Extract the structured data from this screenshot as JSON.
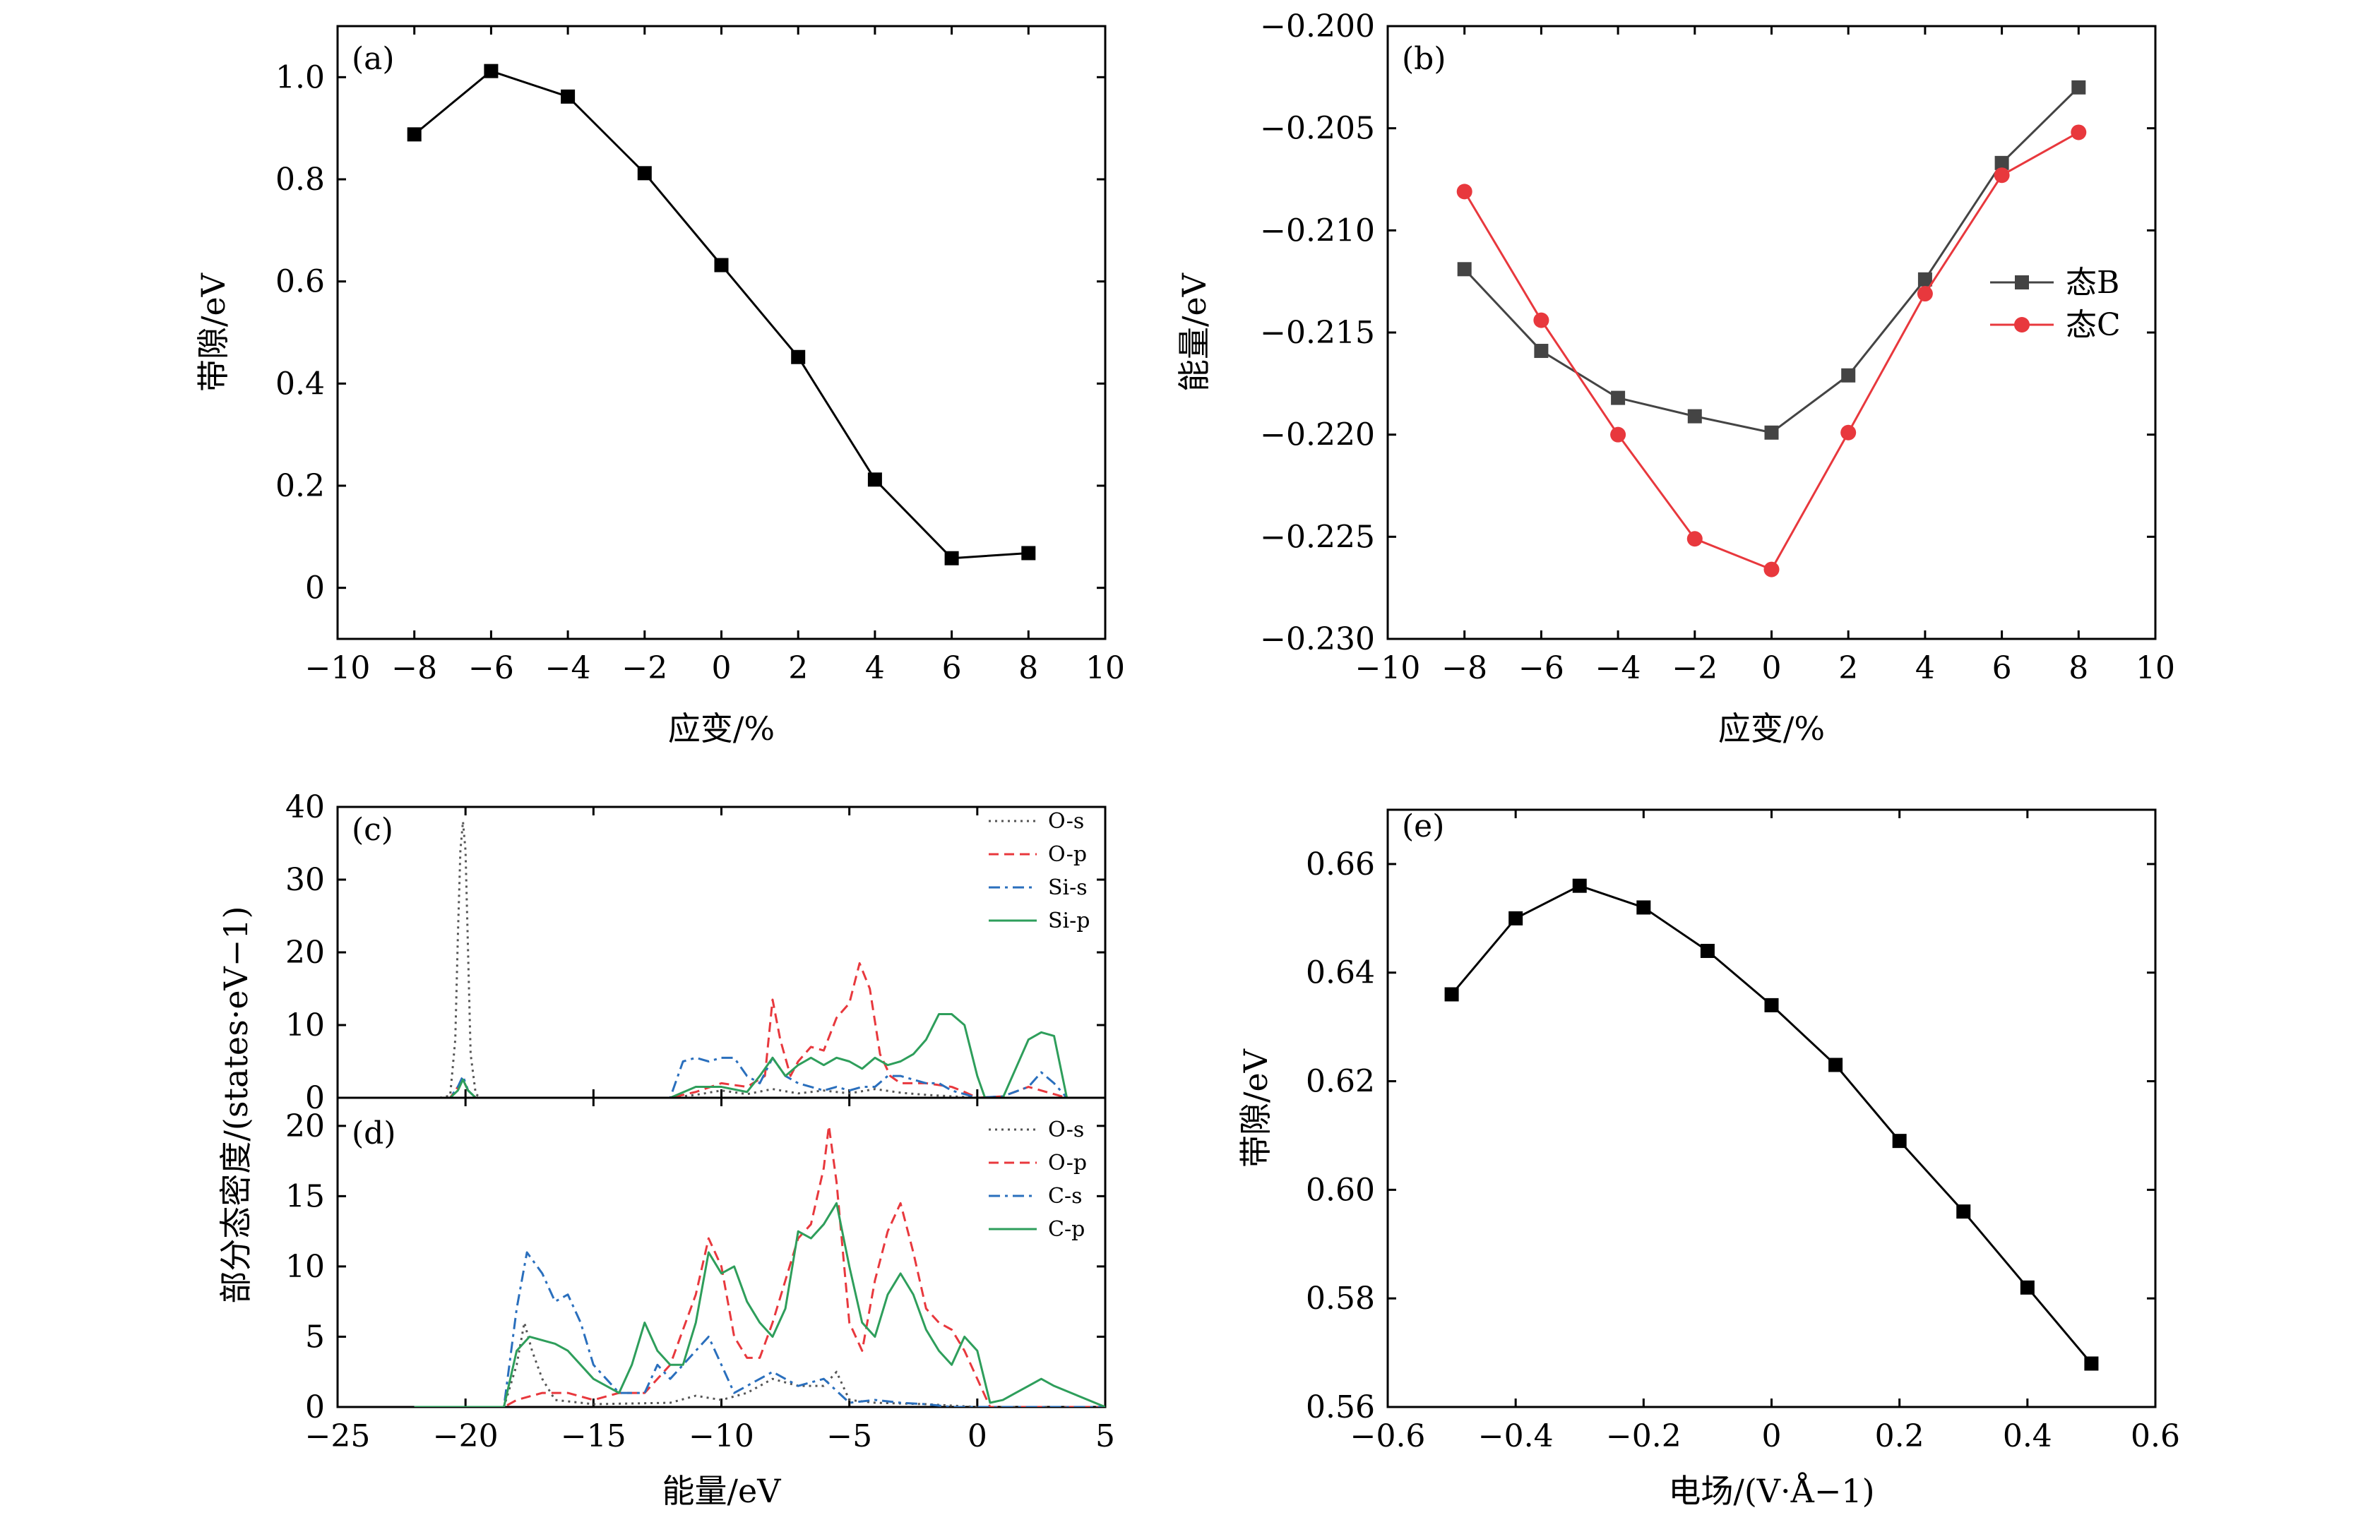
{
  "chart_data": [
    {
      "panel": "(a)",
      "type": "line",
      "xlabel": "应变/%",
      "ylabel": "带隙/eV",
      "xlim": [
        -10,
        10
      ],
      "ylim": [
        -0.1,
        1.1
      ],
      "xticks": [
        -10,
        -8,
        -6,
        -4,
        -2,
        0,
        2,
        4,
        6,
        8,
        10
      ],
      "xtick_labels": [
        "−10",
        "−8",
        "−6",
        "−4",
        "−2",
        "0",
        "2",
        "4",
        "6",
        "8",
        "10"
      ],
      "yticks": [
        0,
        0.2,
        0.4,
        0.6,
        0.8,
        1.0
      ],
      "ytick_labels": [
        "0",
        "0.2",
        "0.4",
        "0.6",
        "0.8",
        "1.0"
      ],
      "series": [
        {
          "color": "#000000",
          "marker": "square",
          "x": [
            -8,
            -6,
            -4,
            -2,
            0,
            2,
            4,
            6,
            8
          ],
          "y": [
            0.888,
            1.012,
            0.962,
            0.812,
            0.632,
            0.452,
            0.212,
            0.058,
            0.068
          ]
        }
      ]
    },
    {
      "panel": "(b)",
      "type": "line",
      "xlabel": "应变/%",
      "ylabel": "能量/eV",
      "xlim": [
        -10,
        10
      ],
      "ylim": [
        -0.23,
        -0.2
      ],
      "xticks": [
        -10,
        -8,
        -6,
        -4,
        -2,
        0,
        2,
        4,
        6,
        8,
        10
      ],
      "xtick_labels": [
        "−10",
        "−8",
        "−6",
        "−4",
        "−2",
        "0",
        "2",
        "4",
        "6",
        "8",
        "10"
      ],
      "yticks": [
        -0.23,
        -0.225,
        -0.22,
        -0.215,
        -0.21,
        -0.205,
        -0.2
      ],
      "ytick_labels": [
        "−0.230",
        "−0.225",
        "−0.220",
        "−0.215",
        "−0.210",
        "−0.205",
        "−0.200"
      ],
      "legend_position": "right",
      "series": [
        {
          "name": "态B",
          "color": "#444444",
          "marker": "square",
          "x": [
            -8,
            -6,
            -4,
            -2,
            0,
            2,
            4,
            6,
            8
          ],
          "y": [
            -0.2119,
            -0.2159,
            -0.2182,
            -0.2191,
            -0.2199,
            -0.2171,
            -0.2124,
            -0.2067,
            -0.203
          ]
        },
        {
          "name": "态C",
          "color": "#e8383d",
          "marker": "circle",
          "x": [
            -8,
            -6,
            -4,
            -2,
            0,
            2,
            4,
            6,
            8
          ],
          "y": [
            -0.2081,
            -0.2144,
            -0.22,
            -0.2251,
            -0.2266,
            -0.2199,
            -0.2131,
            -0.2073,
            -0.2052
          ]
        }
      ]
    },
    {
      "panel": "(c)",
      "type": "line",
      "xlim": [
        -25,
        5
      ],
      "ylim": [
        0,
        40
      ],
      "yticks": [
        0,
        10,
        20,
        30,
        40
      ],
      "ytick_labels": [
        "0",
        "10",
        "20",
        "30",
        "40"
      ],
      "legend_position": "top-right",
      "series": [
        {
          "name": "O-s",
          "color": "#555555",
          "style": "dotted",
          "x": [
            -22,
            -21,
            -20.6,
            -20.4,
            -20.3,
            -20.2,
            -20.1,
            -20.0,
            -19.9,
            -19.8,
            -19.6,
            -19.4,
            -12,
            -11,
            -10,
            -9,
            -8,
            -7,
            -6,
            -5,
            -4,
            -3,
            -2,
            -1,
            0,
            3.5
          ],
          "y": [
            0,
            0,
            0.3,
            8,
            22,
            34,
            38,
            34,
            20,
            6,
            0.5,
            0,
            0,
            0.4,
            1,
            0.5,
            1.2,
            0.6,
            1.0,
            0.6,
            1.2,
            0.7,
            0.4,
            0.2,
            0,
            0
          ]
        },
        {
          "name": "O-p",
          "color": "#e8383d",
          "style": "dashed",
          "x": [
            -22,
            -20.6,
            -20.3,
            -20.1,
            -19.9,
            -19.6,
            -12,
            -11,
            -10,
            -9,
            -8.3,
            -8.0,
            -7.7,
            -7.3,
            -7,
            -6.5,
            -6,
            -5.5,
            -5,
            -4.6,
            -4.2,
            -3.8,
            -3.4,
            -3,
            -2,
            -1,
            -0.5,
            0,
            1,
            2,
            3.5
          ],
          "y": [
            0,
            0,
            1.5,
            2.5,
            1,
            0,
            0,
            0.8,
            2,
            1.5,
            3,
            13.5,
            8,
            3,
            5,
            7,
            6.5,
            11,
            13,
            18.5,
            15,
            6,
            3,
            2,
            2,
            1.5,
            0.8,
            0,
            0.2,
            1.5,
            0
          ]
        },
        {
          "name": "Si-s",
          "color": "#2a6fbd",
          "style": "dashdot",
          "x": [
            -22,
            -20.6,
            -20.3,
            -20.1,
            -19.9,
            -19.6,
            -12,
            -11.5,
            -11,
            -10.5,
            -10,
            -9.5,
            -9,
            -8.5,
            -8,
            -7.5,
            -7,
            -6.5,
            -6,
            -5.5,
            -5,
            -4.5,
            -4,
            -3.5,
            -3,
            -2.5,
            -2,
            -1.5,
            -1,
            -0.5,
            0,
            1,
            2,
            2.5,
            3,
            3.5
          ],
          "y": [
            0,
            0,
            1.5,
            3,
            1,
            0,
            0,
            5,
            5.5,
            5,
            5.5,
            5.5,
            3,
            2,
            5.5,
            3,
            2,
            1.5,
            1,
            1.5,
            1,
            1.5,
            1.5,
            3,
            3,
            2.5,
            2,
            2,
            1,
            0.5,
            0,
            0.2,
            1.5,
            3.5,
            2,
            0
          ]
        },
        {
          "name": "Si-p",
          "color": "#2e9e5b",
          "style": "solid",
          "x": [
            -22,
            -20.6,
            -20.3,
            -20.1,
            -19.9,
            -19.6,
            -12,
            -11,
            -10,
            -9,
            -8.5,
            -8,
            -7.5,
            -7,
            -6.5,
            -6,
            -5.5,
            -5,
            -4.5,
            -4,
            -3.5,
            -3,
            -2.5,
            -2,
            -1.5,
            -1,
            -0.5,
            0,
            0.3,
            1,
            1.5,
            2,
            2.5,
            3,
            3.5
          ],
          "y": [
            0,
            0,
            1,
            2.5,
            1,
            0,
            0,
            1.5,
            1.5,
            0.8,
            3,
            5.5,
            3,
            4.5,
            5.5,
            4.5,
            5.5,
            5,
            4,
            5.5,
            4.5,
            5,
            6,
            8,
            11.5,
            11.5,
            10,
            3,
            0,
            0,
            4,
            8,
            9,
            8.5,
            0
          ]
        }
      ]
    },
    {
      "panel": "(d)",
      "type": "line",
      "xlabel": "能量/eV",
      "shared_ylabel": "部分态密度/(states·eV−1)",
      "xlim": [
        -25,
        5
      ],
      "ylim": [
        0,
        22
      ],
      "xticks": [
        -25,
        -20,
        -15,
        -10,
        -5,
        0,
        5
      ],
      "xtick_labels": [
        "−25",
        "−20",
        "−15",
        "−10",
        "−5",
        "0",
        "5"
      ],
      "yticks": [
        0,
        5,
        10,
        15,
        20
      ],
      "ytick_labels": [
        "0",
        "5",
        "10",
        "15",
        "20"
      ],
      "legend_position": "top-right",
      "series": [
        {
          "name": "O-s",
          "color": "#555555",
          "style": "dotted",
          "x": [
            -22,
            -18.5,
            -18,
            -17.7,
            -17.4,
            -17,
            -16.5,
            -15,
            -12,
            -11,
            -10,
            -9,
            -8,
            -7,
            -6,
            -5.5,
            -5,
            -4,
            -2,
            0,
            5
          ],
          "y": [
            0,
            0,
            3,
            6,
            4,
            2,
            0.5,
            0.2,
            0.3,
            0.8,
            0.5,
            1,
            2,
            1.5,
            1.5,
            2.5,
            0.5,
            0.3,
            0.2,
            0,
            0
          ]
        },
        {
          "name": "O-p",
          "color": "#e8383d",
          "style": "dashed",
          "x": [
            -22,
            -18.5,
            -18,
            -17,
            -16,
            -15,
            -14,
            -13,
            -12,
            -11,
            -10.5,
            -10,
            -9.5,
            -9,
            -8.5,
            -8,
            -7.5,
            -7,
            -6.5,
            -6,
            -5.8,
            -5.5,
            -5.2,
            -5,
            -4.5,
            -4,
            -3.5,
            -3,
            -2.5,
            -2,
            -1.5,
            -1,
            -0.5,
            0,
            0.5,
            5
          ],
          "y": [
            0,
            0,
            0.5,
            1,
            1,
            0.5,
            1,
            1,
            3,
            8,
            12,
            10,
            5,
            3.5,
            3.5,
            6,
            9,
            12,
            13,
            17,
            20,
            16,
            10,
            6,
            4,
            9,
            12.5,
            14.5,
            11,
            7,
            6,
            5.5,
            4,
            2,
            0,
            0
          ]
        },
        {
          "name": "C-s",
          "color": "#2a6fbd",
          "style": "dashdot",
          "x": [
            -22,
            -18.5,
            -18,
            -17.6,
            -17,
            -16.5,
            -16,
            -15.5,
            -15,
            -14,
            -13,
            -12.5,
            -12,
            -11.5,
            -11,
            -10.5,
            -10,
            -9.5,
            -9,
            -8,
            -7.5,
            -7,
            -6,
            -5,
            -4,
            -3,
            -2,
            -1,
            0,
            5
          ],
          "y": [
            0,
            0,
            7,
            11,
            9.5,
            7.5,
            8,
            6,
            3,
            1,
            1,
            3,
            2,
            3,
            4,
            5,
            3,
            1,
            1.5,
            2.5,
            2,
            1.5,
            2,
            0.3,
            0.5,
            0.3,
            0.2,
            0,
            0,
            0
          ]
        },
        {
          "name": "C-p",
          "color": "#2e9e5b",
          "style": "solid",
          "x": [
            -22,
            -18.5,
            -18,
            -17.5,
            -16.5,
            -16,
            -15,
            -14,
            -13.5,
            -13,
            -12.5,
            -12,
            -11.5,
            -11,
            -10.5,
            -10,
            -9.5,
            -9,
            -8.5,
            -8,
            -7.5,
            -7,
            -6.5,
            -6,
            -5.5,
            -5,
            -4.5,
            -4,
            -3.5,
            -3,
            -2.5,
            -2,
            -1.5,
            -1,
            -0.5,
            0,
            0.5,
            1,
            1.5,
            2,
            2.5,
            3,
            5
          ],
          "y": [
            0,
            0,
            4,
            5,
            4.5,
            4,
            2,
            1,
            3,
            6,
            4,
            3,
            3,
            6,
            11,
            9.5,
            10,
            7.5,
            6,
            5,
            7,
            12.5,
            12,
            13,
            14.5,
            10,
            6,
            5,
            8,
            9.5,
            8,
            5.5,
            4,
            3,
            5,
            4,
            0.3,
            0.5,
            1,
            1.5,
            2,
            1.5,
            0
          ]
        }
      ]
    },
    {
      "panel": "(e)",
      "type": "line",
      "xlabel": "电场/(V·Å−1)",
      "ylabel": "带隙/eV",
      "xlim": [
        -0.6,
        0.6
      ],
      "ylim": [
        0.56,
        0.67
      ],
      "xticks": [
        -0.6,
        -0.4,
        -0.2,
        0,
        0.2,
        0.4,
        0.6
      ],
      "xtick_labels": [
        "−0.6",
        "−0.4",
        "−0.2",
        "0",
        "0.2",
        "0.4",
        "0.6"
      ],
      "yticks": [
        0.56,
        0.58,
        0.6,
        0.62,
        0.64,
        0.66
      ],
      "ytick_labels": [
        "0.56",
        "0.58",
        "0.60",
        "0.62",
        "0.64",
        "0.66"
      ],
      "series": [
        {
          "color": "#000000",
          "marker": "square",
          "x": [
            -0.5,
            -0.4,
            -0.3,
            -0.2,
            -0.1,
            0,
            0.1,
            0.2,
            0.3,
            0.4,
            0.5
          ],
          "y": [
            0.636,
            0.65,
            0.656,
            0.652,
            0.644,
            0.634,
            0.623,
            0.609,
            0.596,
            0.582,
            0.568
          ]
        }
      ]
    }
  ]
}
